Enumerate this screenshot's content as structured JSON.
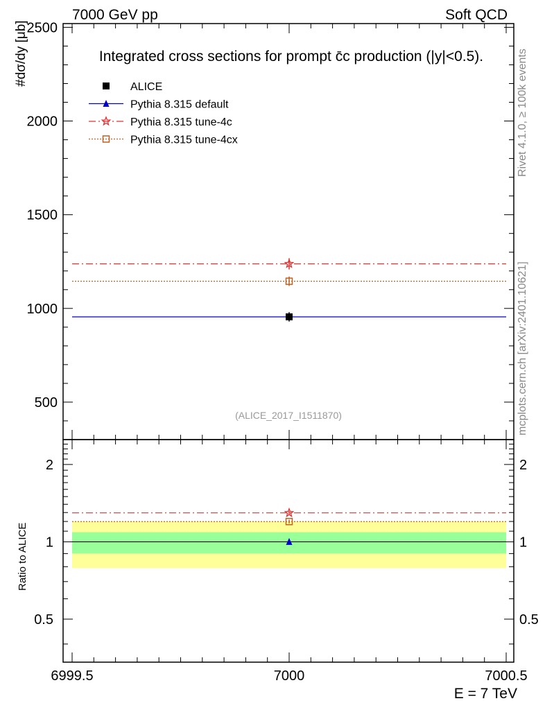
{
  "header": {
    "left": "7000 GeV pp",
    "right": "Soft QCD"
  },
  "side_labels": {
    "rivet": "Rivet 4.1.0, ≥ 100k events",
    "mcplots": "mcplots.cern.ch [arXiv:2401.10621]"
  },
  "colors": {
    "alice": "#000000",
    "default": "#0000cc",
    "tune4c": "#e03030",
    "tune4cx": "#c06020",
    "band_inner": "#99ff99",
    "band_outer": "#ffff99"
  },
  "chart_data": [
    {
      "type": "scatter",
      "panel": "main",
      "title": "Integrated cross sections for prompt c̄c production (|y|<0.5).",
      "ylabel": "#dσ/dy [μb]",
      "xlim": [
        6999.5,
        7000.5
      ],
      "ylim": [
        300,
        2520
      ],
      "yticks": [
        500,
        1000,
        1500,
        2000,
        2500
      ],
      "ytick_labels": [
        "500",
        "1000",
        "1500",
        "2000",
        "2500"
      ],
      "watermark": "(ALICE_2017_I1511870)",
      "series": [
        {
          "name": "ALICE",
          "key": "alice",
          "x": 7000,
          "y": 955,
          "err": 25,
          "marker": "square",
          "line": "none"
        },
        {
          "name": "Pythia 8.315 default",
          "key": "default",
          "x": 7000,
          "y": 955,
          "err": 5,
          "marker": "triangle",
          "line": "solid"
        },
        {
          "name": "Pythia 8.315 tune-4c",
          "key": "tune4c",
          "x": 7000,
          "y": 1238,
          "err": 30,
          "marker": "star",
          "line": "dashdot"
        },
        {
          "name": "Pythia 8.315 tune-4cx",
          "key": "tune4cx",
          "x": 7000,
          "y": 1145,
          "err": 25,
          "marker": "open-square",
          "line": "dotted"
        }
      ]
    },
    {
      "type": "scatter",
      "panel": "ratio",
      "ylabel": "Ratio to ALICE",
      "xlabel": "E = 7 TeV",
      "xlim": [
        6999.5,
        7000.5
      ],
      "ylim": [
        0.34,
        2.5
      ],
      "xticks": [
        6999.5,
        7000,
        7000.5
      ],
      "xtick_labels": [
        "6999.5",
        "7000",
        "7000.5"
      ],
      "yticks": [
        0.5,
        1,
        2
      ],
      "ytick_labels": [
        "0.5",
        "1",
        "2"
      ],
      "bands": {
        "inner": [
          0.9,
          1.09
        ],
        "outer": [
          0.79,
          1.2
        ]
      },
      "series": [
        {
          "name": "Pythia 8.315 default",
          "key": "default",
          "x": 7000,
          "y": 1.0,
          "err": 0.02
        },
        {
          "name": "Pythia 8.315 tune-4c",
          "key": "tune4c",
          "x": 7000,
          "y": 1.296,
          "err": 0.02
        },
        {
          "name": "Pythia 8.315 tune-4cx",
          "key": "tune4cx",
          "x": 7000,
          "y": 1.199,
          "err": 0.02
        }
      ]
    }
  ]
}
